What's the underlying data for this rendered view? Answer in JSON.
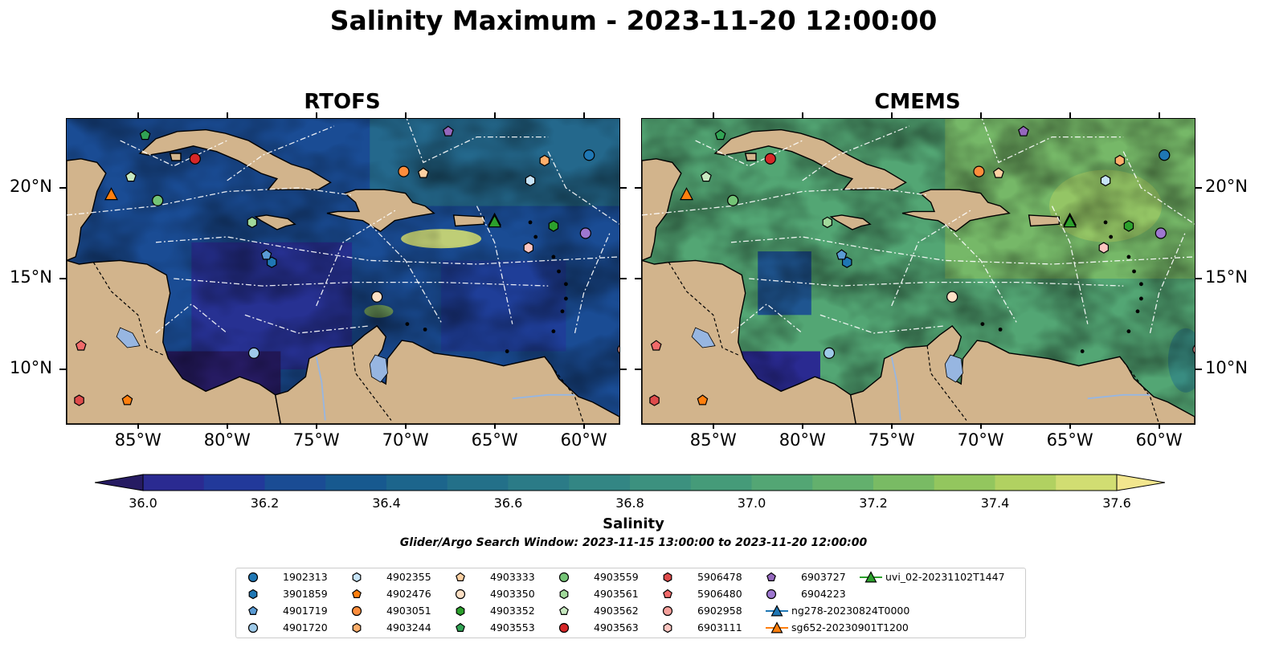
{
  "title": "Salinity Maximum - 2023-11-20 12:00:00",
  "panels": [
    {
      "title": "RTOFS"
    },
    {
      "title": "CMEMS"
    }
  ],
  "axes": {
    "lon_ticks": [
      "85°W",
      "80°W",
      "75°W",
      "70°W",
      "65°W",
      "60°W"
    ],
    "lat_ticks": [
      "20°N",
      "15°N",
      "10°N"
    ]
  },
  "colorbar": {
    "label": "Salinity",
    "min": 36.0,
    "max": 37.6,
    "ticks": [
      "36.0",
      "36.2",
      "36.4",
      "36.6",
      "36.8",
      "37.0",
      "37.2",
      "37.4",
      "37.6"
    ],
    "colors": [
      "#261b62",
      "#2a2a91",
      "#22399a",
      "#1a4c94",
      "#17598f",
      "#1c658c",
      "#237089",
      "#2b7b87",
      "#338684",
      "#3c917f",
      "#459b79",
      "#53a674",
      "#63b06d",
      "#79bb64",
      "#93c65e",
      "#b1d161",
      "#d1dd72",
      "#f2e68e"
    ]
  },
  "search_window": "Glider/Argo Search Window: 2023-11-15 13:00:00 to 2023-11-20 12:00:00",
  "legend": [
    {
      "label": "1902313",
      "marker": "circle",
      "color": "#1f77b4"
    },
    {
      "label": "3901859",
      "marker": "hexagon",
      "color": "#1f77b4"
    },
    {
      "label": "4901719",
      "marker": "pentagon",
      "color": "#5a9bd4"
    },
    {
      "label": "4901720",
      "marker": "circle",
      "color": "#9ecae9"
    },
    {
      "label": "4902355",
      "marker": "hexagon",
      "color": "#c6e3f7"
    },
    {
      "label": "4902476",
      "marker": "pentagon",
      "color": "#ff7f0e"
    },
    {
      "label": "4903051",
      "marker": "circle",
      "color": "#fd8d3c"
    },
    {
      "label": "4903244",
      "marker": "hexagon",
      "color": "#fdae6b"
    },
    {
      "label": "4903333",
      "marker": "pentagon",
      "color": "#fdd0a2"
    },
    {
      "label": "4903350",
      "marker": "circle",
      "color": "#fde0c5"
    },
    {
      "label": "4903352",
      "marker": "hexagon",
      "color": "#2ca02c"
    },
    {
      "label": "4903553",
      "marker": "pentagon",
      "color": "#31a354"
    },
    {
      "label": "4903559",
      "marker": "circle",
      "color": "#74c476"
    },
    {
      "label": "4903561",
      "marker": "hexagon",
      "color": "#a1d99b"
    },
    {
      "label": "4903562",
      "marker": "pentagon",
      "color": "#c7e9c0"
    },
    {
      "label": "4903563",
      "marker": "circle",
      "color": "#d62728"
    },
    {
      "label": "5906478",
      "marker": "hexagon",
      "color": "#de4b4b"
    },
    {
      "label": "5906480",
      "marker": "pentagon",
      "color": "#f06a6a"
    },
    {
      "label": "6902958",
      "marker": "circle",
      "color": "#f4a09b"
    },
    {
      "label": "6903111",
      "marker": "hexagon",
      "color": "#fcc5c0"
    },
    {
      "label": "6903727",
      "marker": "pentagon",
      "color": "#9467bd"
    },
    {
      "label": "6904223",
      "marker": "circle",
      "color": "#9e77d0"
    },
    {
      "label": "ng278-20230824T0000",
      "marker": "triangle-line",
      "color": "#1f77b4"
    },
    {
      "label": "sg652-20230901T1200",
      "marker": "triangle-line",
      "color": "#ff7f0e"
    },
    {
      "label": "uvi_02-20231102T1447",
      "marker": "triangle-line",
      "color": "#2ca02c"
    }
  ],
  "floats": [
    {
      "id": "1902313",
      "lon": -59.7,
      "lat": 21.8
    },
    {
      "id": "3901859",
      "lon": -77.5,
      "lat": 15.9
    },
    {
      "id": "4901719",
      "lon": -77.8,
      "lat": 16.3
    },
    {
      "id": "4901720",
      "lon": -78.5,
      "lat": 10.9
    },
    {
      "id": "4902355",
      "lon": -63.0,
      "lat": 20.4
    },
    {
      "id": "4902476",
      "lon": -85.6,
      "lat": 8.3
    },
    {
      "id": "4903051",
      "lon": -70.1,
      "lat": 20.9
    },
    {
      "id": "4903244",
      "lon": -62.2,
      "lat": 21.5
    },
    {
      "id": "4903333",
      "lon": -69.0,
      "lat": 20.8
    },
    {
      "id": "4903350",
      "lon": -71.6,
      "lat": 14.0
    },
    {
      "id": "4903352",
      "lon": -61.7,
      "lat": 17.9
    },
    {
      "id": "4903553",
      "lon": -84.6,
      "lat": 22.9
    },
    {
      "id": "4903559",
      "lon": -83.9,
      "lat": 19.3
    },
    {
      "id": "4903561",
      "lon": -78.6,
      "lat": 18.1
    },
    {
      "id": "4903562",
      "lon": -85.4,
      "lat": 20.6
    },
    {
      "id": "4903563",
      "lon": -81.8,
      "lat": 21.6
    },
    {
      "id": "5906478",
      "lon": -88.3,
      "lat": 8.3
    },
    {
      "id": "5906480",
      "lon": -88.2,
      "lat": 11.3
    },
    {
      "id": "6902958",
      "lon": -57.8,
      "lat": 11.1
    },
    {
      "id": "6903111",
      "lon": -63.1,
      "lat": 16.7
    },
    {
      "id": "6903727",
      "lon": -67.6,
      "lat": 23.1
    },
    {
      "id": "6904223",
      "lon": -59.9,
      "lat": 17.5
    }
  ],
  "gliders": [
    {
      "id": "ng278-20230824T0000",
      "lon": -65.0,
      "lat": 18.2
    },
    {
      "id": "sg652-20230901T1200",
      "lon": -86.5,
      "lat": 19.6
    },
    {
      "id": "uvi_02-20231102T1447",
      "lon": -65.0,
      "lat": 18.1
    }
  ],
  "colors": {
    "land": "#d2b48c",
    "lake": "#97b6e1",
    "boundaries": "#ffffff"
  }
}
